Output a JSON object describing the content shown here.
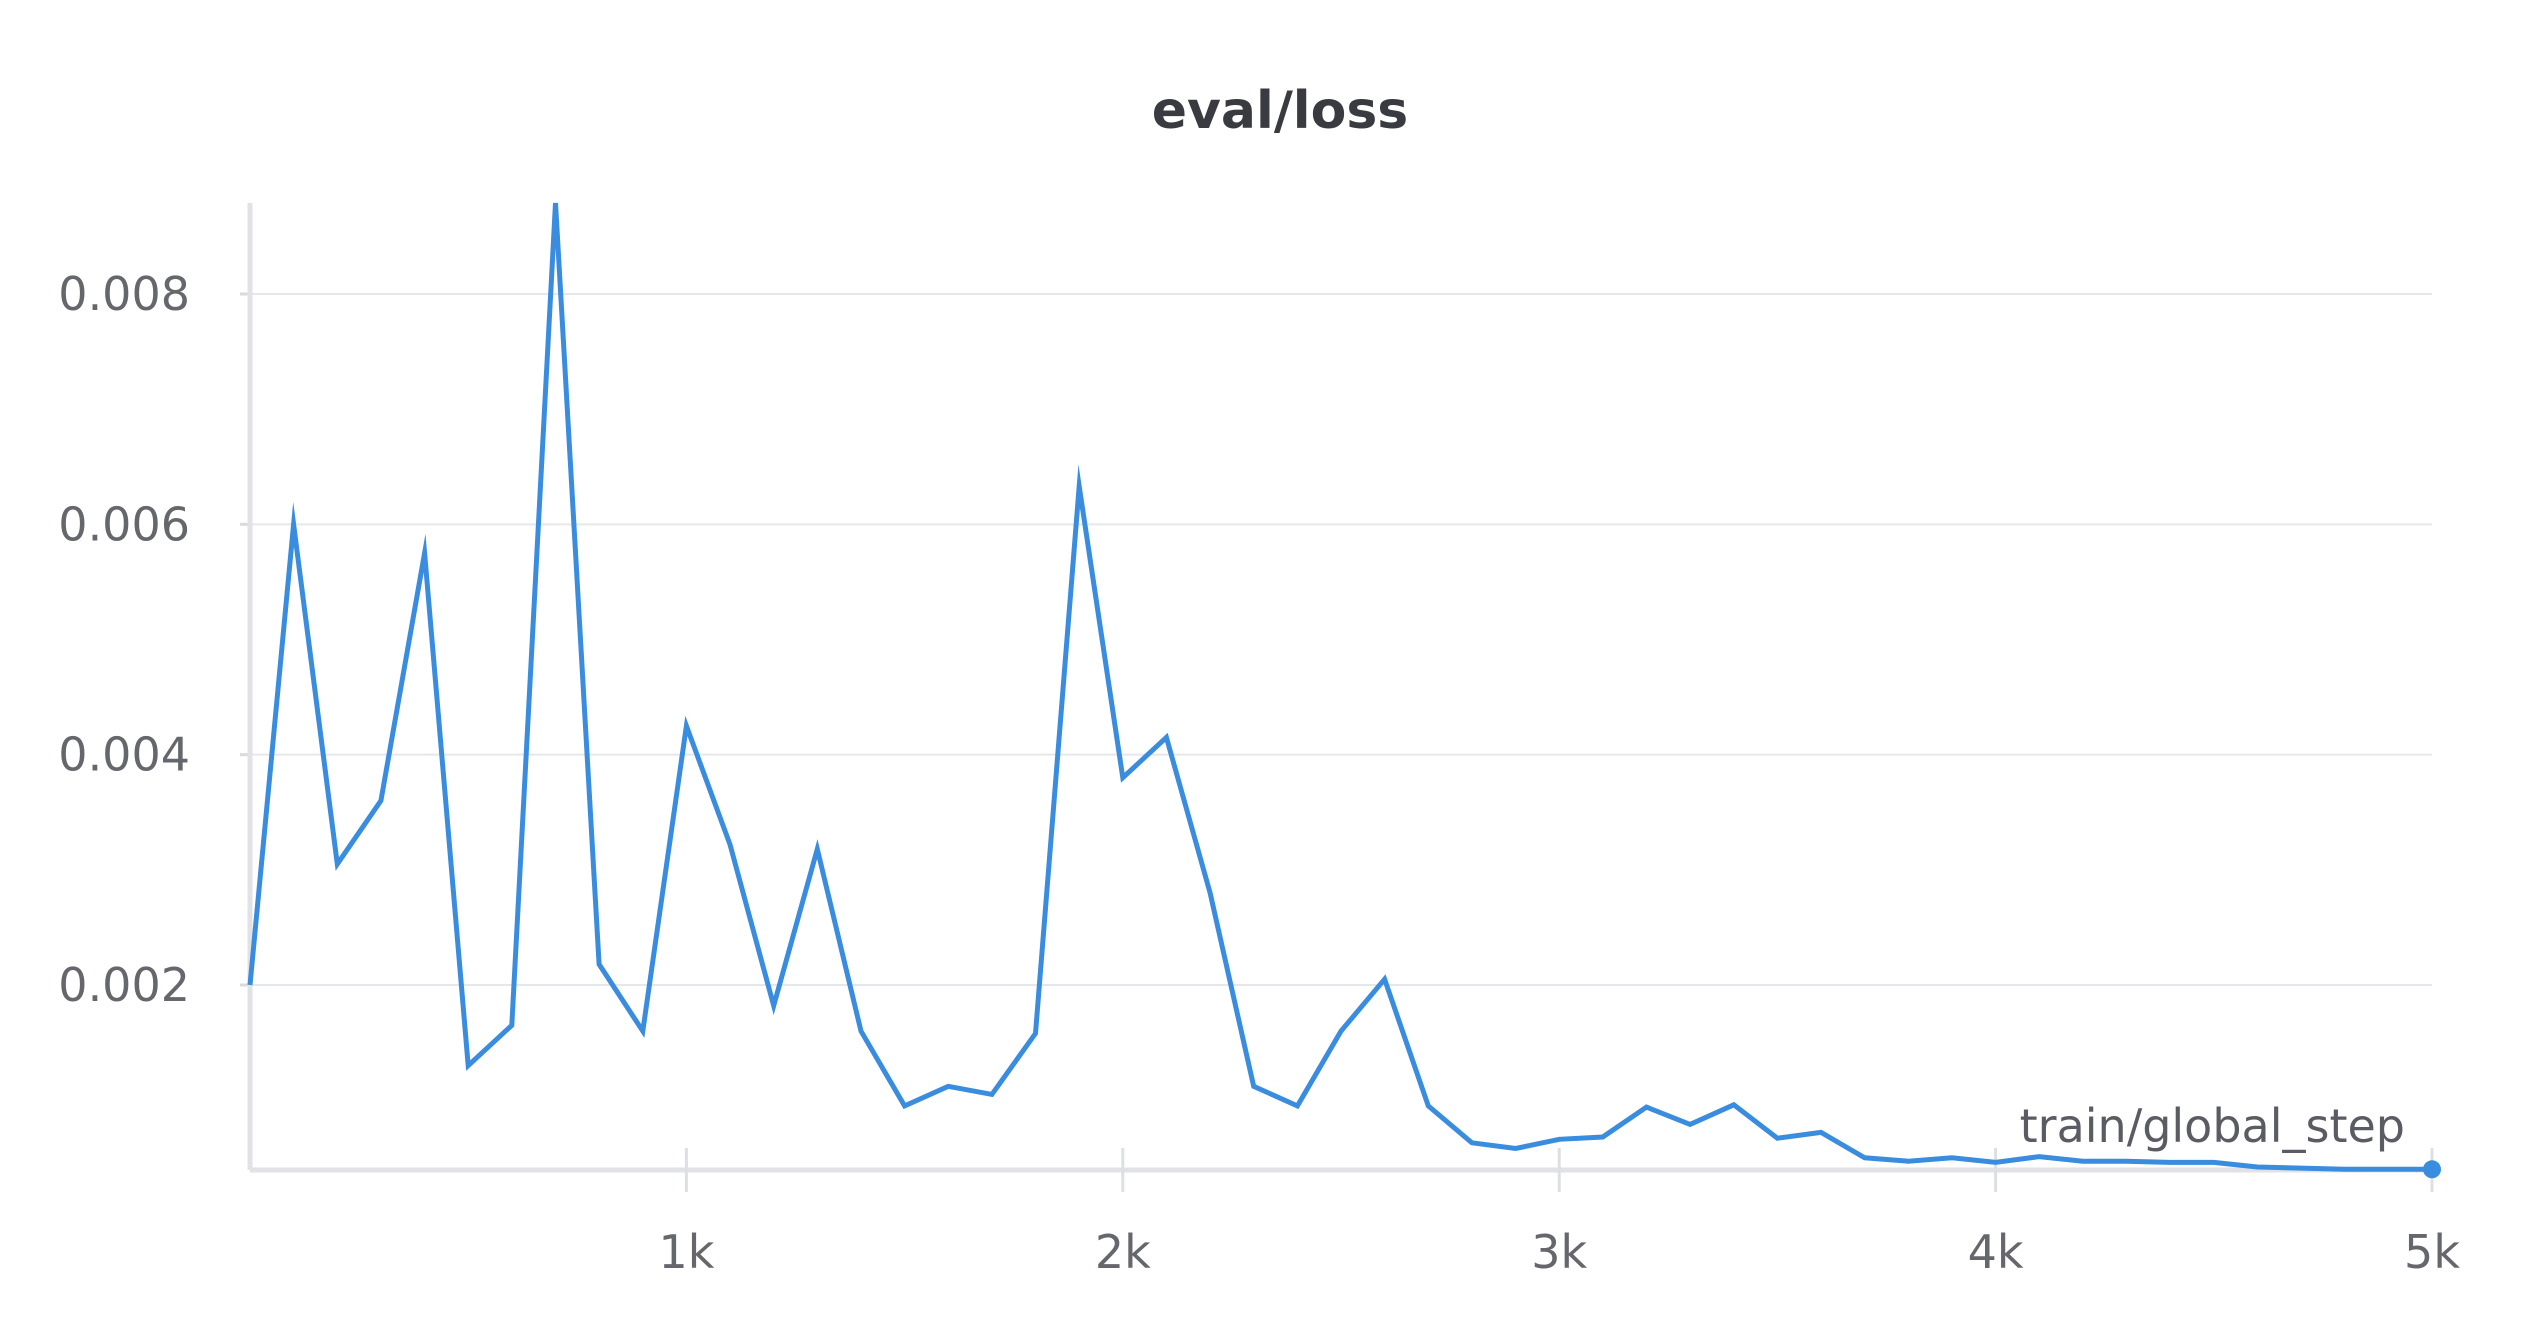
{
  "chart_data": {
    "type": "line",
    "title": "eval/loss",
    "xlabel": "train/global_step",
    "ylabel": "",
    "xlim": [
      0,
      5000
    ],
    "ylim": [
      0.0004,
      0.0088
    ],
    "x_ticks": [
      1000,
      2000,
      3000,
      4000,
      5000
    ],
    "x_tick_labels": [
      "1k",
      "2k",
      "3k",
      "4k",
      "5k"
    ],
    "y_ticks": [
      0.002,
      0.004,
      0.006,
      0.008
    ],
    "y_tick_labels": [
      "0.002",
      "0.004",
      "0.006",
      "0.008"
    ],
    "grid": true,
    "line_color": "#3a8dde",
    "series": [
      {
        "x": [
          0,
          100,
          200,
          300,
          400,
          500,
          600,
          700,
          800,
          900,
          1000,
          1100,
          1200,
          1300,
          1400,
          1500,
          1600,
          1700,
          1800,
          1900,
          2000,
          2100,
          2200,
          2300,
          2400,
          2500,
          2600,
          2700,
          2800,
          2900,
          3000,
          3100,
          3200,
          3300,
          3400,
          3500,
          3600,
          3700,
          3800,
          3900,
          4000,
          4100,
          4200,
          4300,
          4400,
          4500,
          4600,
          4700,
          4800,
          4900,
          5000
        ],
        "values": [
          0.002,
          0.006,
          0.00305,
          0.0036,
          0.00575,
          0.0013,
          0.00165,
          0.0088,
          0.00218,
          0.0016,
          0.00425,
          0.00322,
          0.00182,
          0.00318,
          0.0016,
          0.00095,
          0.00112,
          0.00105,
          0.00158,
          0.00633,
          0.0038,
          0.00415,
          0.0028,
          0.00112,
          0.00095,
          0.0016,
          0.00205,
          0.00095,
          0.00063,
          0.00058,
          0.00066,
          0.00068,
          0.00094,
          0.00079,
          0.00096,
          0.00067,
          0.00072,
          0.0005,
          0.00047,
          0.0005,
          0.00046,
          0.00051,
          0.00047,
          0.00047,
          0.00046,
          0.00046,
          0.00042,
          0.00041,
          0.0004,
          0.0004,
          0.0004
        ]
      }
    ]
  }
}
